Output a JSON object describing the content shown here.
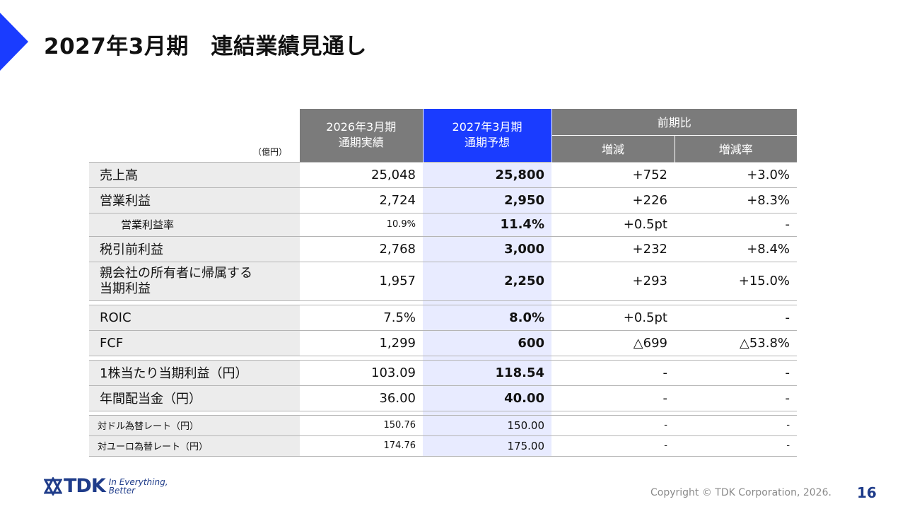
{
  "title": "2027年3月期　連結業績見通し",
  "table": {
    "unit": "（億円）",
    "headers": {
      "prev_line1": "2026年3月期",
      "prev_line2": "通期実績",
      "fcst_line1": "2027年3月期",
      "fcst_line2": "通期予想",
      "comparison": "前期比",
      "change": "増減",
      "change_rate": "増減率"
    },
    "rows": [
      {
        "label": "売上高",
        "prev": "25,048",
        "fcst": "25,800",
        "change": "+752",
        "rate": "+3.0%"
      },
      {
        "label": "営業利益",
        "prev": "2,724",
        "fcst": "2,950",
        "change": "+226",
        "rate": "+8.3%"
      },
      {
        "label": "営業利益率",
        "prev": "10.9%",
        "fcst": "11.4%",
        "change": "+0.5pt",
        "rate": "-"
      },
      {
        "label": "税引前利益",
        "prev": "2,768",
        "fcst": "3,000",
        "change": "+232",
        "rate": "+8.4%"
      },
      {
        "label_line1": "親会社の所有者に帰属する",
        "label_line2": "当期利益",
        "prev": "1,957",
        "fcst": "2,250",
        "change": "+293",
        "rate": "+15.0%"
      },
      {
        "label": "ROIC",
        "prev": "7.5%",
        "fcst": "8.0%",
        "change": "+0.5pt",
        "rate": "-"
      },
      {
        "label": "FCF",
        "prev": "1,299",
        "fcst": "600",
        "change": "△699",
        "rate": "△53.8%"
      },
      {
        "label": "1株当たり当期利益（円）",
        "prev": "103.09",
        "fcst": "118.54",
        "change": "-",
        "rate": "-"
      },
      {
        "label": "年間配当金（円）",
        "prev": "36.00",
        "fcst": "40.00",
        "change": "-",
        "rate": "-"
      },
      {
        "label": "対ドル為替レート（円）",
        "prev": "150.76",
        "fcst": "150.00",
        "change": "-",
        "rate": "-"
      },
      {
        "label": "対ユーロ為替レート（円）",
        "prev": "174.76",
        "fcst": "175.00",
        "change": "-",
        "rate": "-"
      }
    ]
  },
  "footer": {
    "logo_text": "TDK",
    "tagline_line1": "In Everything,",
    "tagline_line2": "Better",
    "copyright": "Copyright  © TDK Corporation, 2026.",
    "page_number": "16"
  },
  "colors": {
    "accent_blue": "#1a3cff",
    "header_gray": "#7b7b7b",
    "label_bg": "#ececec",
    "forecast_bg": "#e8ebff",
    "brand_navy": "#1f3c8a"
  }
}
